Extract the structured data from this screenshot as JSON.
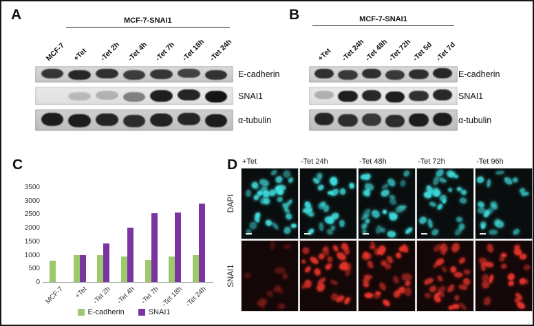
{
  "panels": {
    "A": {
      "label": "A",
      "title": "MCF-7-SNAI1",
      "lanes": [
        "MCF-7",
        "+Tet",
        "-Tet 2h",
        "-Tet 4h",
        "-Tet 7h",
        "-Tet 18h",
        "-Tet 24h"
      ],
      "bracket_start_lane": 1,
      "rows": [
        {
          "label": "E-cadherin",
          "bands": [
            0.82,
            0.9,
            0.85,
            0.78,
            0.82,
            0.76,
            0.84
          ]
        },
        {
          "label": "SNAI1",
          "bands": [
            0.03,
            0.2,
            0.24,
            0.48,
            0.95,
            0.92,
            1.0
          ]
        },
        {
          "label": "α-tubulin",
          "bands": [
            0.95,
            0.95,
            0.9,
            0.86,
            0.92,
            0.9,
            0.95
          ]
        }
      ]
    },
    "B": {
      "label": "B",
      "title": "MCF-7-SNAI1",
      "lanes": [
        "+Tet",
        "-Tet 24h",
        "-Tet 48h",
        "-Tet 72h",
        "-Tet 5d",
        "-Tet 7d"
      ],
      "bracket_start_lane": 0,
      "rows": [
        {
          "label": "E-cadherin",
          "bands": [
            0.85,
            0.8,
            0.85,
            0.8,
            0.86,
            0.9
          ]
        },
        {
          "label": "SNAI1",
          "bands": [
            0.25,
            0.95,
            0.9,
            0.95,
            0.86,
            0.9
          ]
        },
        {
          "label": "α-tubulin",
          "bands": [
            0.9,
            0.85,
            0.8,
            0.86,
            0.95,
            0.95
          ]
        }
      ]
    },
    "C": {
      "label": "C"
    },
    "D": {
      "label": "D",
      "columns": [
        "+Tet",
        "-Tet 24h",
        "-Tet 48h",
        "-Tet 72h",
        "-Tet 96h"
      ],
      "row_labels": [
        "DAPI",
        "SNAI1"
      ],
      "colors": {
        "DAPI": "#3fdcdc",
        "SNAI1": "#e5342b"
      },
      "cell_counts": [
        [
          30,
          26,
          28,
          24,
          20
        ],
        [
          12,
          28,
          30,
          26,
          22
        ]
      ],
      "cell_brightness": [
        [
          1,
          1,
          1,
          1,
          1
        ],
        [
          0.4,
          1,
          1,
          0.95,
          1
        ]
      ]
    }
  },
  "chart_data": {
    "type": "bar",
    "title": "",
    "xlabel": "",
    "ylabel": "",
    "categories": [
      "MCF-7",
      "+Tet",
      "-Tet 2h",
      "-Tet 4h",
      "-Tet 7h",
      "-Tet 18h",
      "-Tet 24h"
    ],
    "series": [
      {
        "name": "E-cadherin",
        "color": "#9cc96b",
        "values": [
          780,
          1000,
          1000,
          950,
          820,
          930,
          1000
        ]
      },
      {
        "name": "SNAI1",
        "color": "#7b35a0",
        "values": [
          0,
          1000,
          1430,
          2000,
          2530,
          2550,
          2900
        ]
      }
    ],
    "ylim": [
      0,
      3500
    ],
    "ytick_step": 500,
    "grid": false,
    "legend_position": "bottom"
  }
}
